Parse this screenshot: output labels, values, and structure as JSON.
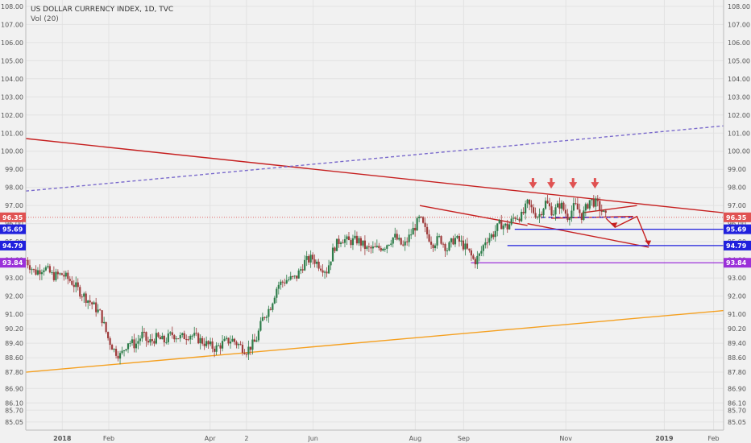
{
  "header": {
    "symbol_line": "US DOLLAR CURRENCY INDEX, 1D, TVC",
    "indicator": "Vol (20)"
  },
  "colors": {
    "background": "#f1f1f1",
    "grid": "#e2e2e2",
    "candle_up": "#2e7d4a",
    "candle_down": "#9e3b3b",
    "trendline_red": "#c62020",
    "trendline_orange": "#f5a020",
    "trendline_dashed": "#7a6acc",
    "support_blue": "#2020dd",
    "support_purple": "#9b30d9",
    "marker_red": "#e05252"
  },
  "chart_data": {
    "type": "candlestick",
    "title": "US DOLLAR CURRENCY INDEX, 1D, TVC",
    "y_axis": {
      "ylim": [
        84.6,
        108.35
      ],
      "tick_labels": [
        "108.00",
        "107.00",
        "106.00",
        "105.00",
        "104.00",
        "103.00",
        "102.00",
        "101.00",
        "100.00",
        "99.00",
        "98.00",
        "97.00",
        "96.00",
        "95.00",
        "94.00",
        "93.00",
        "92.00",
        "91.00",
        "90.20",
        "89.40",
        "88.60",
        "87.80",
        "86.90",
        "86.10",
        "85.70",
        "85.05"
      ],
      "tick_values": [
        108,
        107,
        106,
        105,
        104,
        103,
        102,
        101,
        100,
        99,
        98,
        97,
        96,
        95,
        94,
        93,
        92,
        91,
        90.2,
        89.4,
        88.6,
        87.8,
        86.9,
        86.1,
        85.7,
        85.05
      ]
    },
    "x_axis": {
      "tick_labels": [
        "2018",
        "Feb",
        "Apr",
        "2",
        "Jun",
        "Aug",
        "Sep",
        "Nov",
        "2019",
        "Feb"
      ],
      "tick_days": [
        0,
        51,
        162,
        202,
        275,
        387,
        440,
        552,
        660,
        714
      ]
    },
    "price_markers": [
      {
        "label": "96.35",
        "value": 96.35,
        "color": "#e05252"
      },
      {
        "label": "95.69",
        "value": 95.69,
        "color": "#2020dd"
      },
      {
        "label": "94.79",
        "value": 94.79,
        "color": "#2020dd"
      },
      {
        "label": "93.84",
        "value": 93.84,
        "color": "#9b30d9"
      }
    ],
    "price_anchors": [
      [
        -40,
        94.0
      ],
      [
        -30,
        93.3
      ],
      [
        -20,
        93.6
      ],
      [
        -10,
        93.1
      ],
      [
        0,
        93.2
      ],
      [
        10,
        92.8
      ],
      [
        20,
        92.2
      ],
      [
        32,
        91.6
      ],
      [
        42,
        91.0
      ],
      [
        50,
        89.7
      ],
      [
        57,
        89.0
      ],
      [
        64,
        88.7
      ],
      [
        72,
        89.5
      ],
      [
        80,
        89.3
      ],
      [
        88,
        89.9
      ],
      [
        94,
        89.4
      ],
      [
        103,
        89.7
      ],
      [
        112,
        89.5
      ],
      [
        120,
        89.9
      ],
      [
        130,
        89.7
      ],
      [
        140,
        89.9
      ],
      [
        150,
        89.6
      ],
      [
        160,
        89.3
      ],
      [
        168,
        89.1
      ],
      [
        176,
        89.4
      ],
      [
        186,
        89.6
      ],
      [
        196,
        89.2
      ],
      [
        202,
        89.0
      ],
      [
        212,
        89.5
      ],
      [
        220,
        90.8
      ],
      [
        228,
        91.4
      ],
      [
        236,
        92.6
      ],
      [
        246,
        92.9
      ],
      [
        256,
        93.0
      ],
      [
        266,
        93.9
      ],
      [
        274,
        94.1
      ],
      [
        282,
        93.7
      ],
      [
        290,
        93.4
      ],
      [
        298,
        94.7
      ],
      [
        306,
        95.2
      ],
      [
        314,
        95.0
      ],
      [
        324,
        95.1
      ],
      [
        334,
        94.6
      ],
      [
        344,
        94.6
      ],
      [
        354,
        94.8
      ],
      [
        364,
        95.3
      ],
      [
        374,
        94.7
      ],
      [
        384,
        95.6
      ],
      [
        392,
        96.3
      ],
      [
        398,
        95.6
      ],
      [
        406,
        94.9
      ],
      [
        414,
        95.2
      ],
      [
        422,
        94.6
      ],
      [
        430,
        95.2
      ],
      [
        438,
        94.9
      ],
      [
        446,
        94.4
      ],
      [
        452,
        93.9
      ],
      [
        458,
        94.3
      ],
      [
        464,
        95.1
      ],
      [
        472,
        95.4
      ],
      [
        480,
        96.0
      ],
      [
        488,
        95.8
      ],
      [
        496,
        96.4
      ],
      [
        504,
        96.4
      ],
      [
        510,
        97.1
      ],
      [
        516,
        96.7
      ],
      [
        522,
        96.4
      ],
      [
        530,
        97.2
      ],
      [
        538,
        96.6
      ],
      [
        546,
        97.1
      ],
      [
        554,
        96.4
      ],
      [
        562,
        97.0
      ],
      [
        570,
        96.4
      ],
      [
        578,
        97.3
      ],
      [
        586,
        97.1
      ],
      [
        590,
        96.8
      ],
      [
        596,
        96.35
      ]
    ],
    "trendlines": [
      {
        "name": "upper-resistance",
        "color": "#c62020",
        "points": [
          [
            -40,
            100.7
          ],
          [
            725,
            96.6
          ]
        ]
      },
      {
        "name": "lower-support",
        "color": "#f5a020",
        "points": [
          [
            -40,
            87.8
          ],
          [
            725,
            91.2
          ]
        ]
      },
      {
        "name": "long-dashed",
        "color": "#7a6acc",
        "dashed": true,
        "points": [
          [
            -40,
            97.8
          ],
          [
            725,
            101.4
          ]
        ]
      },
      {
        "name": "channel-top",
        "color": "#c62020",
        "points": [
          [
            392,
            97.0
          ],
          [
            510,
            95.9
          ]
        ]
      },
      {
        "name": "channel-bottom",
        "color": "#c62020",
        "points": [
          [
            510,
            96.0
          ],
          [
            643,
            94.7
          ]
        ]
      },
      {
        "name": "wedge-upper",
        "color": "#c62020",
        "points": [
          [
            570,
            96.6
          ],
          [
            630,
            97.0
          ]
        ]
      },
      {
        "name": "wedge-lower",
        "color": "#c62020",
        "points": [
          [
            536,
            96.3
          ],
          [
            626,
            96.4
          ]
        ]
      }
    ],
    "horizontal_levels": [
      {
        "name": "neckline-dashed",
        "value": 96.35,
        "from": 525,
        "to": 626,
        "color": "#2020dd",
        "dashed": true
      },
      {
        "name": "support-95.69",
        "value": 95.69,
        "from": 496,
        "to": 725,
        "color": "#2020dd"
      },
      {
        "name": "support-94.79",
        "value": 94.79,
        "from": 488,
        "to": 725,
        "color": "#2020dd"
      },
      {
        "name": "support-93.84",
        "value": 93.84,
        "from": 448,
        "to": 725,
        "color": "#9b30d9"
      },
      {
        "name": "last-price",
        "value": 96.35,
        "from": -40,
        "to": 725,
        "color": "#e05252",
        "dotted": true
      }
    ],
    "arrow_path": [
      [
        596,
        96.3
      ],
      [
        606,
        95.8
      ],
      [
        630,
        96.4
      ],
      [
        643,
        94.8
      ]
    ],
    "top_markers_days": [
      516,
      536,
      560,
      584
    ]
  }
}
